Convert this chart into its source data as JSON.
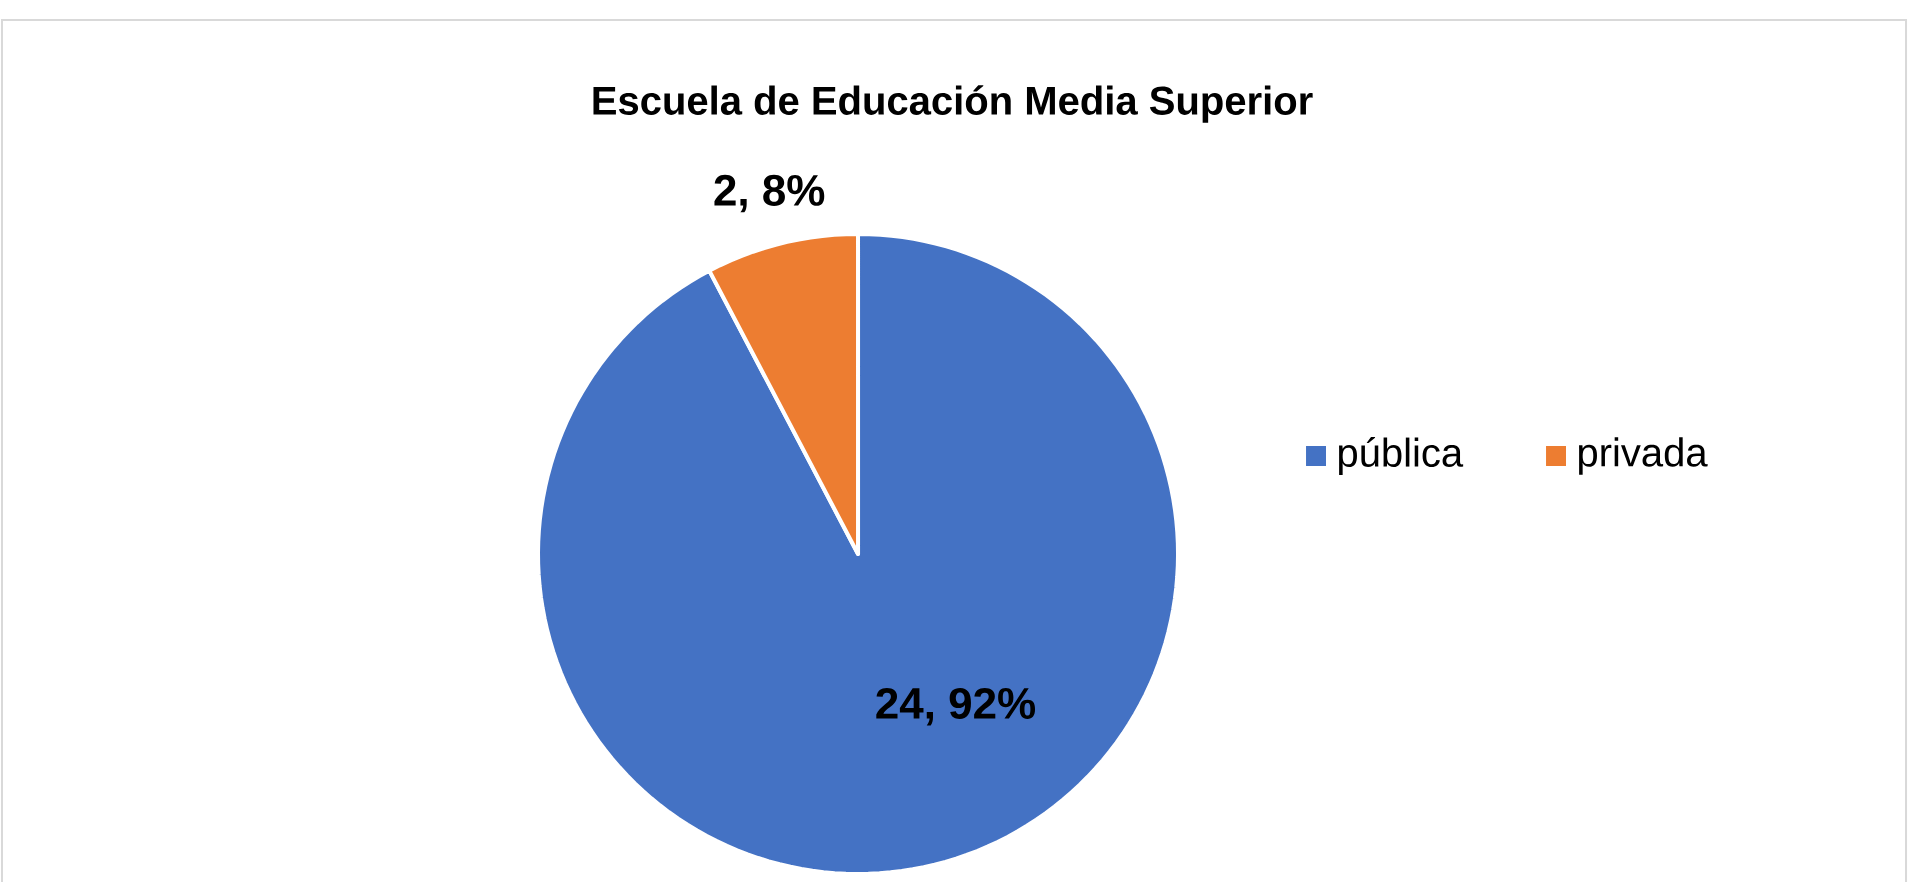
{
  "chart_data": {
    "type": "pie",
    "title": "Escuela de Educación Media Superior",
    "categories": [
      "pública",
      "privada"
    ],
    "values": [
      24,
      2
    ],
    "colors": [
      "#4472c4",
      "#ed7d31"
    ],
    "value_labels": [
      "24, 92%",
      "2, 8%"
    ],
    "legend": "right"
  }
}
